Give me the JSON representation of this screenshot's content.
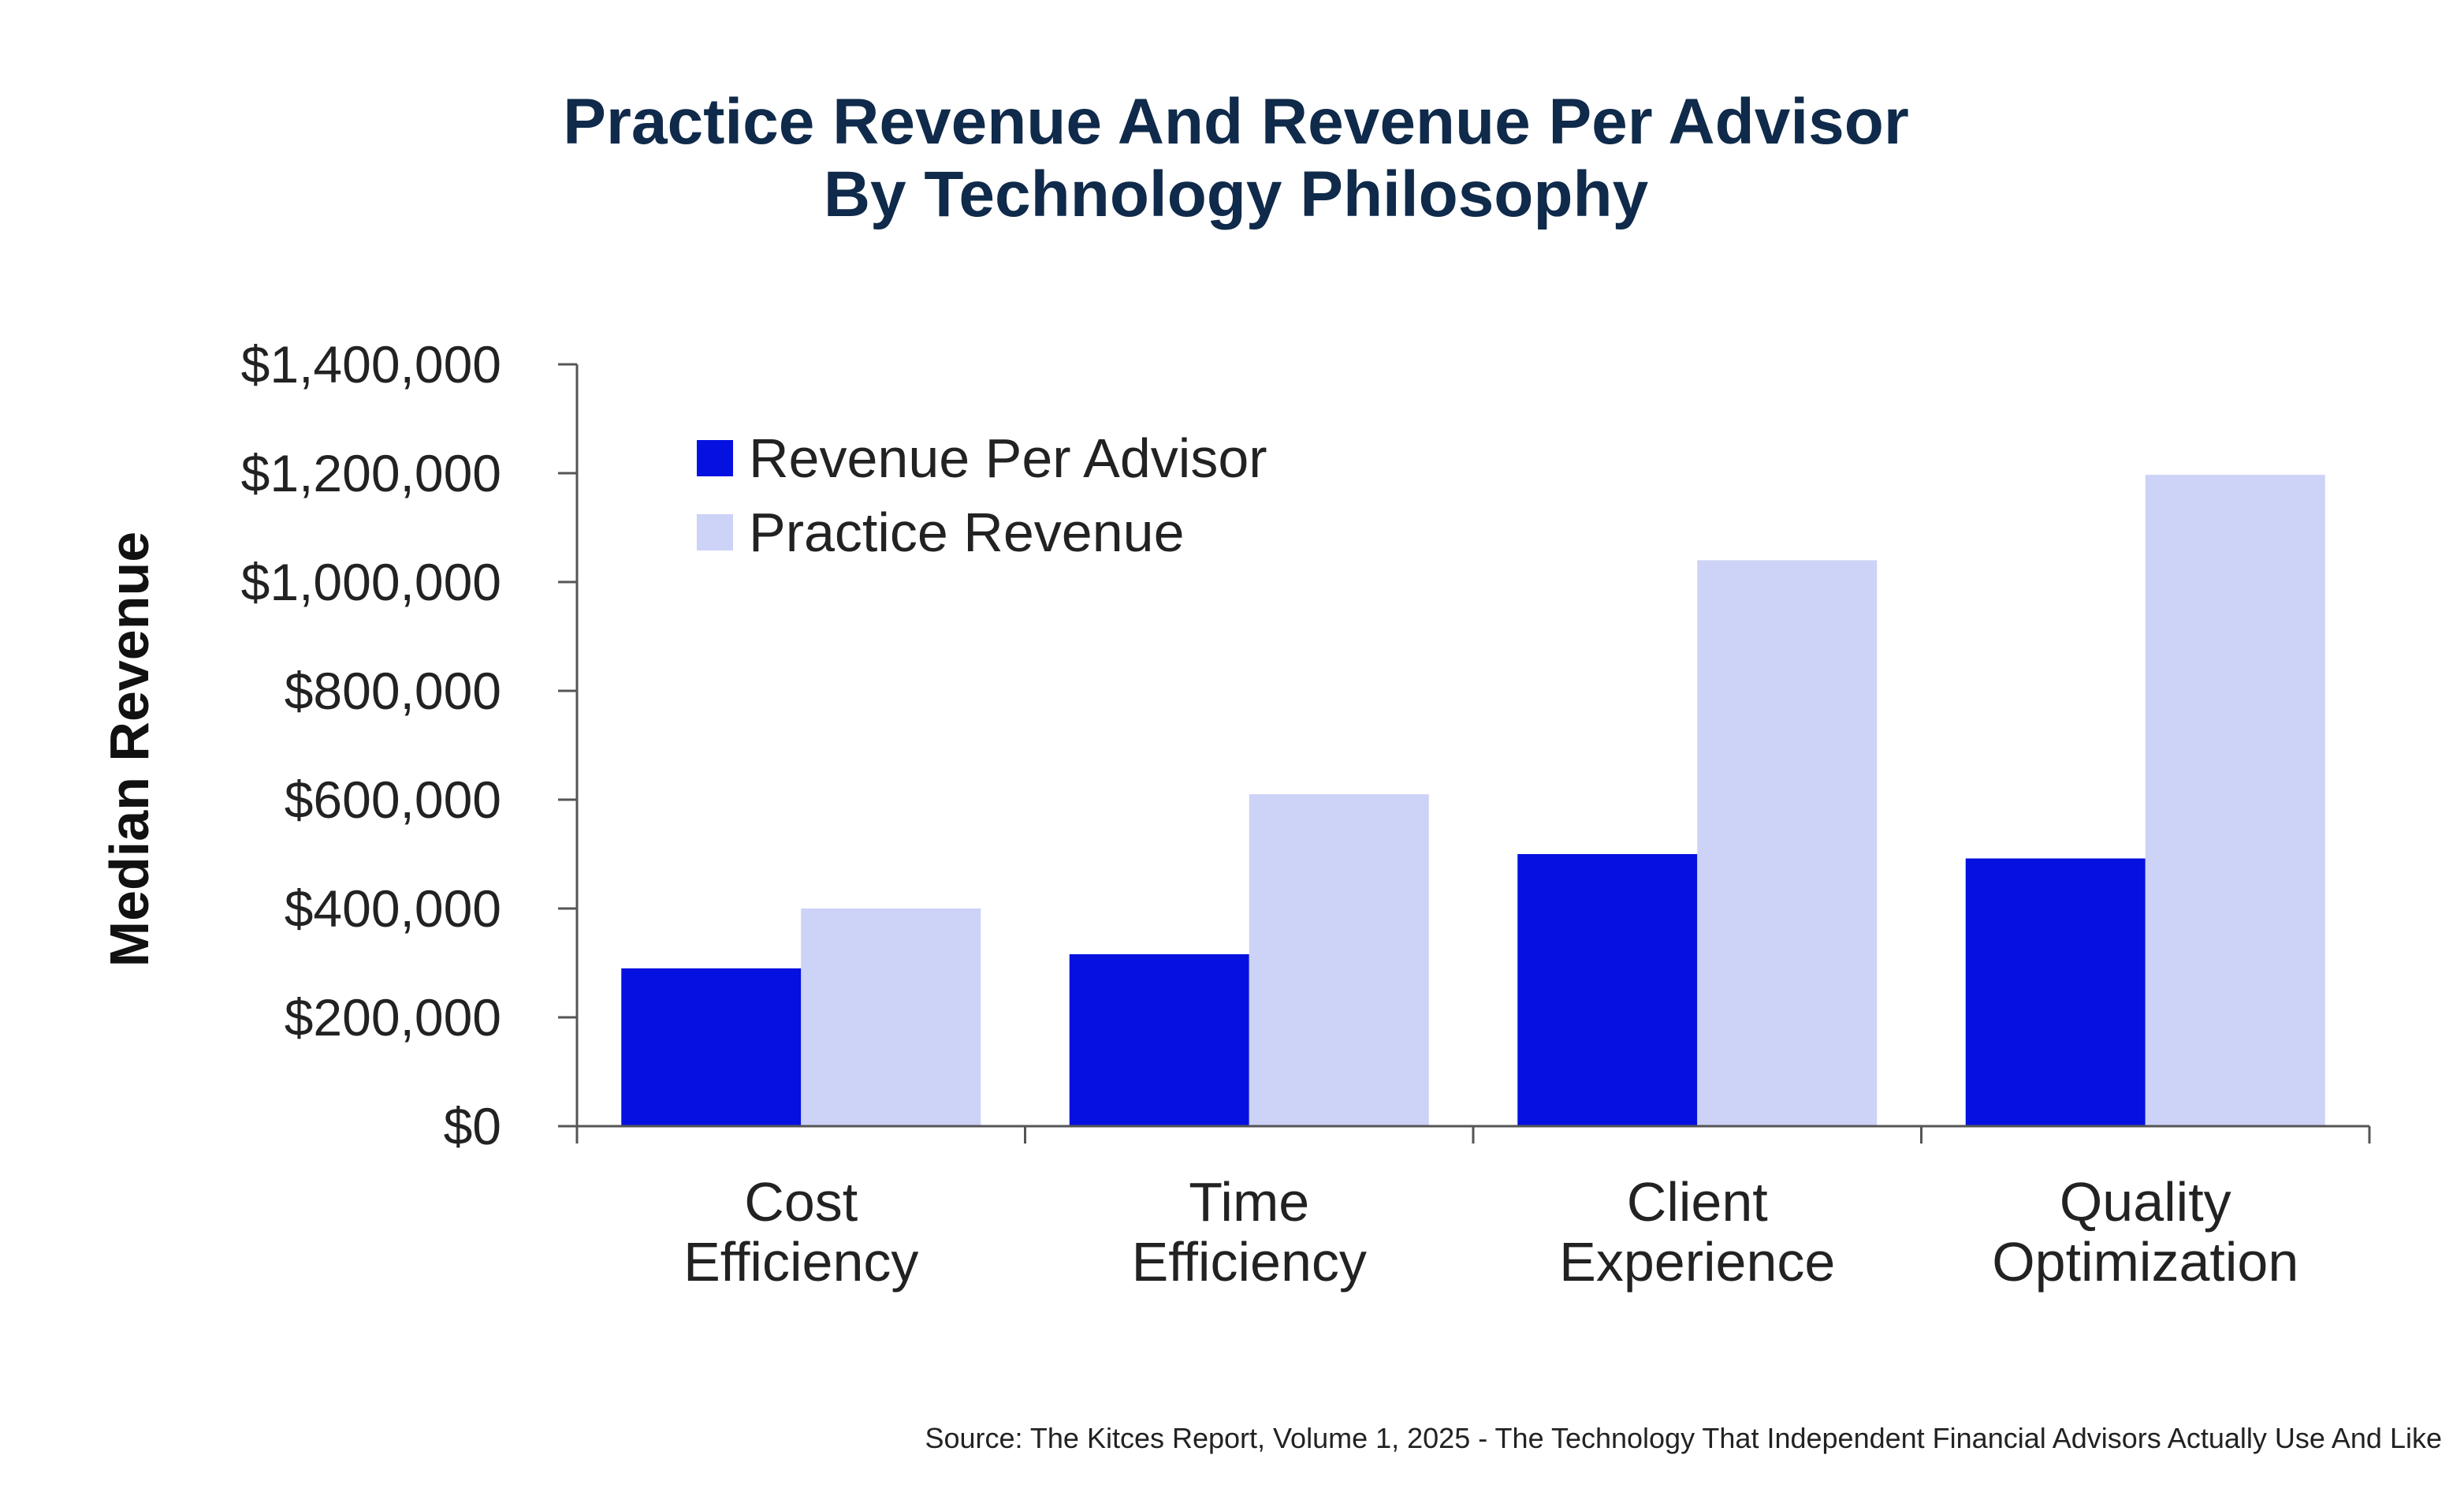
{
  "chart_data": {
    "type": "bar",
    "title": [
      "Practice Revenue And Revenue Per Advisor",
      "By Technology Philosophy"
    ],
    "xlabel": "",
    "ylabel": "Median Revenue",
    "categories": [
      [
        "Cost",
        "Efficiency"
      ],
      [
        "Time",
        "Efficiency"
      ],
      [
        "Client",
        "Experience"
      ],
      [
        "Quality",
        "Optimization"
      ]
    ],
    "series": [
      {
        "name": "Revenue Per Advisor",
        "color": "#0511e0",
        "values": [
          290000,
          316000,
          500000,
          492000
        ]
      },
      {
        "name": "Practice Revenue",
        "color": "#cdd2f7",
        "values": [
          400000,
          610000,
          1040000,
          1197000
        ]
      }
    ],
    "ylim": [
      0,
      1400000
    ],
    "yticks": [
      0,
      200000,
      400000,
      600000,
      800000,
      1000000,
      1200000,
      1400000
    ],
    "ytick_labels": [
      "$0",
      "$200,000",
      "$400,000",
      "$600,000",
      "$800,000",
      "$1,000,000",
      "$1,200,000",
      "$1,400,000"
    ],
    "legend_position": "top-left",
    "grid": false,
    "source": "Source: The Kitces Report, Volume 1, 2025 - The Technology That Independent Financial Advisors Actually Use And Like"
  }
}
